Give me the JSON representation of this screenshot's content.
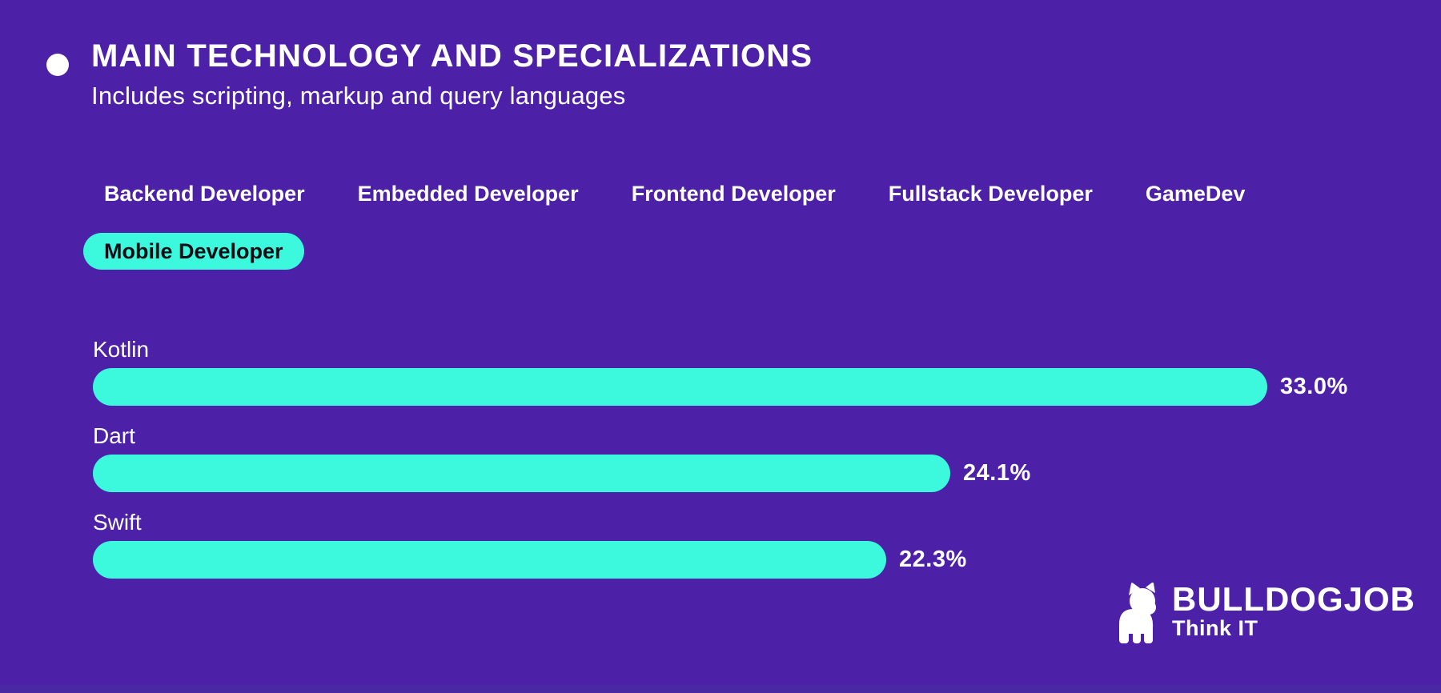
{
  "page": {
    "background": "#4C21A8",
    "accent": "#3CF8DC",
    "text_color": "#FFFFFF",
    "selected_tab_text_color": "#0D0D16"
  },
  "header": {
    "title": "MAIN TECHNOLOGY AND SPECIALIZATIONS",
    "subtitle": "Includes scripting, markup and query languages"
  },
  "tabs": {
    "items": [
      {
        "label": "Backend Developer",
        "selected": false
      },
      {
        "label": "Embedded Developer",
        "selected": false
      },
      {
        "label": "Frontend Developer",
        "selected": false
      },
      {
        "label": "Fullstack Developer",
        "selected": false
      },
      {
        "label": "GameDev",
        "selected": false
      },
      {
        "label": "Mobile Developer",
        "selected": true
      }
    ]
  },
  "chart_data": {
    "type": "bar",
    "orientation": "horizontal",
    "title": "MAIN TECHNOLOGY AND SPECIALIZATIONS",
    "subtitle": "Includes scripting, markup and query languages",
    "selected_tab": "Mobile Developer",
    "categories": [
      "Kotlin",
      "Dart",
      "Swift"
    ],
    "values": [
      33.0,
      24.1,
      22.3
    ],
    "value_labels": [
      "33.0%",
      "24.1%",
      "22.3%"
    ],
    "unit": "%",
    "xlim": [
      0,
      33.0
    ],
    "grid": false,
    "legend": false,
    "bar_color": "#3CF8DC"
  },
  "logo": {
    "brand": "BULLDOGJOB",
    "tagline": "Think IT"
  }
}
